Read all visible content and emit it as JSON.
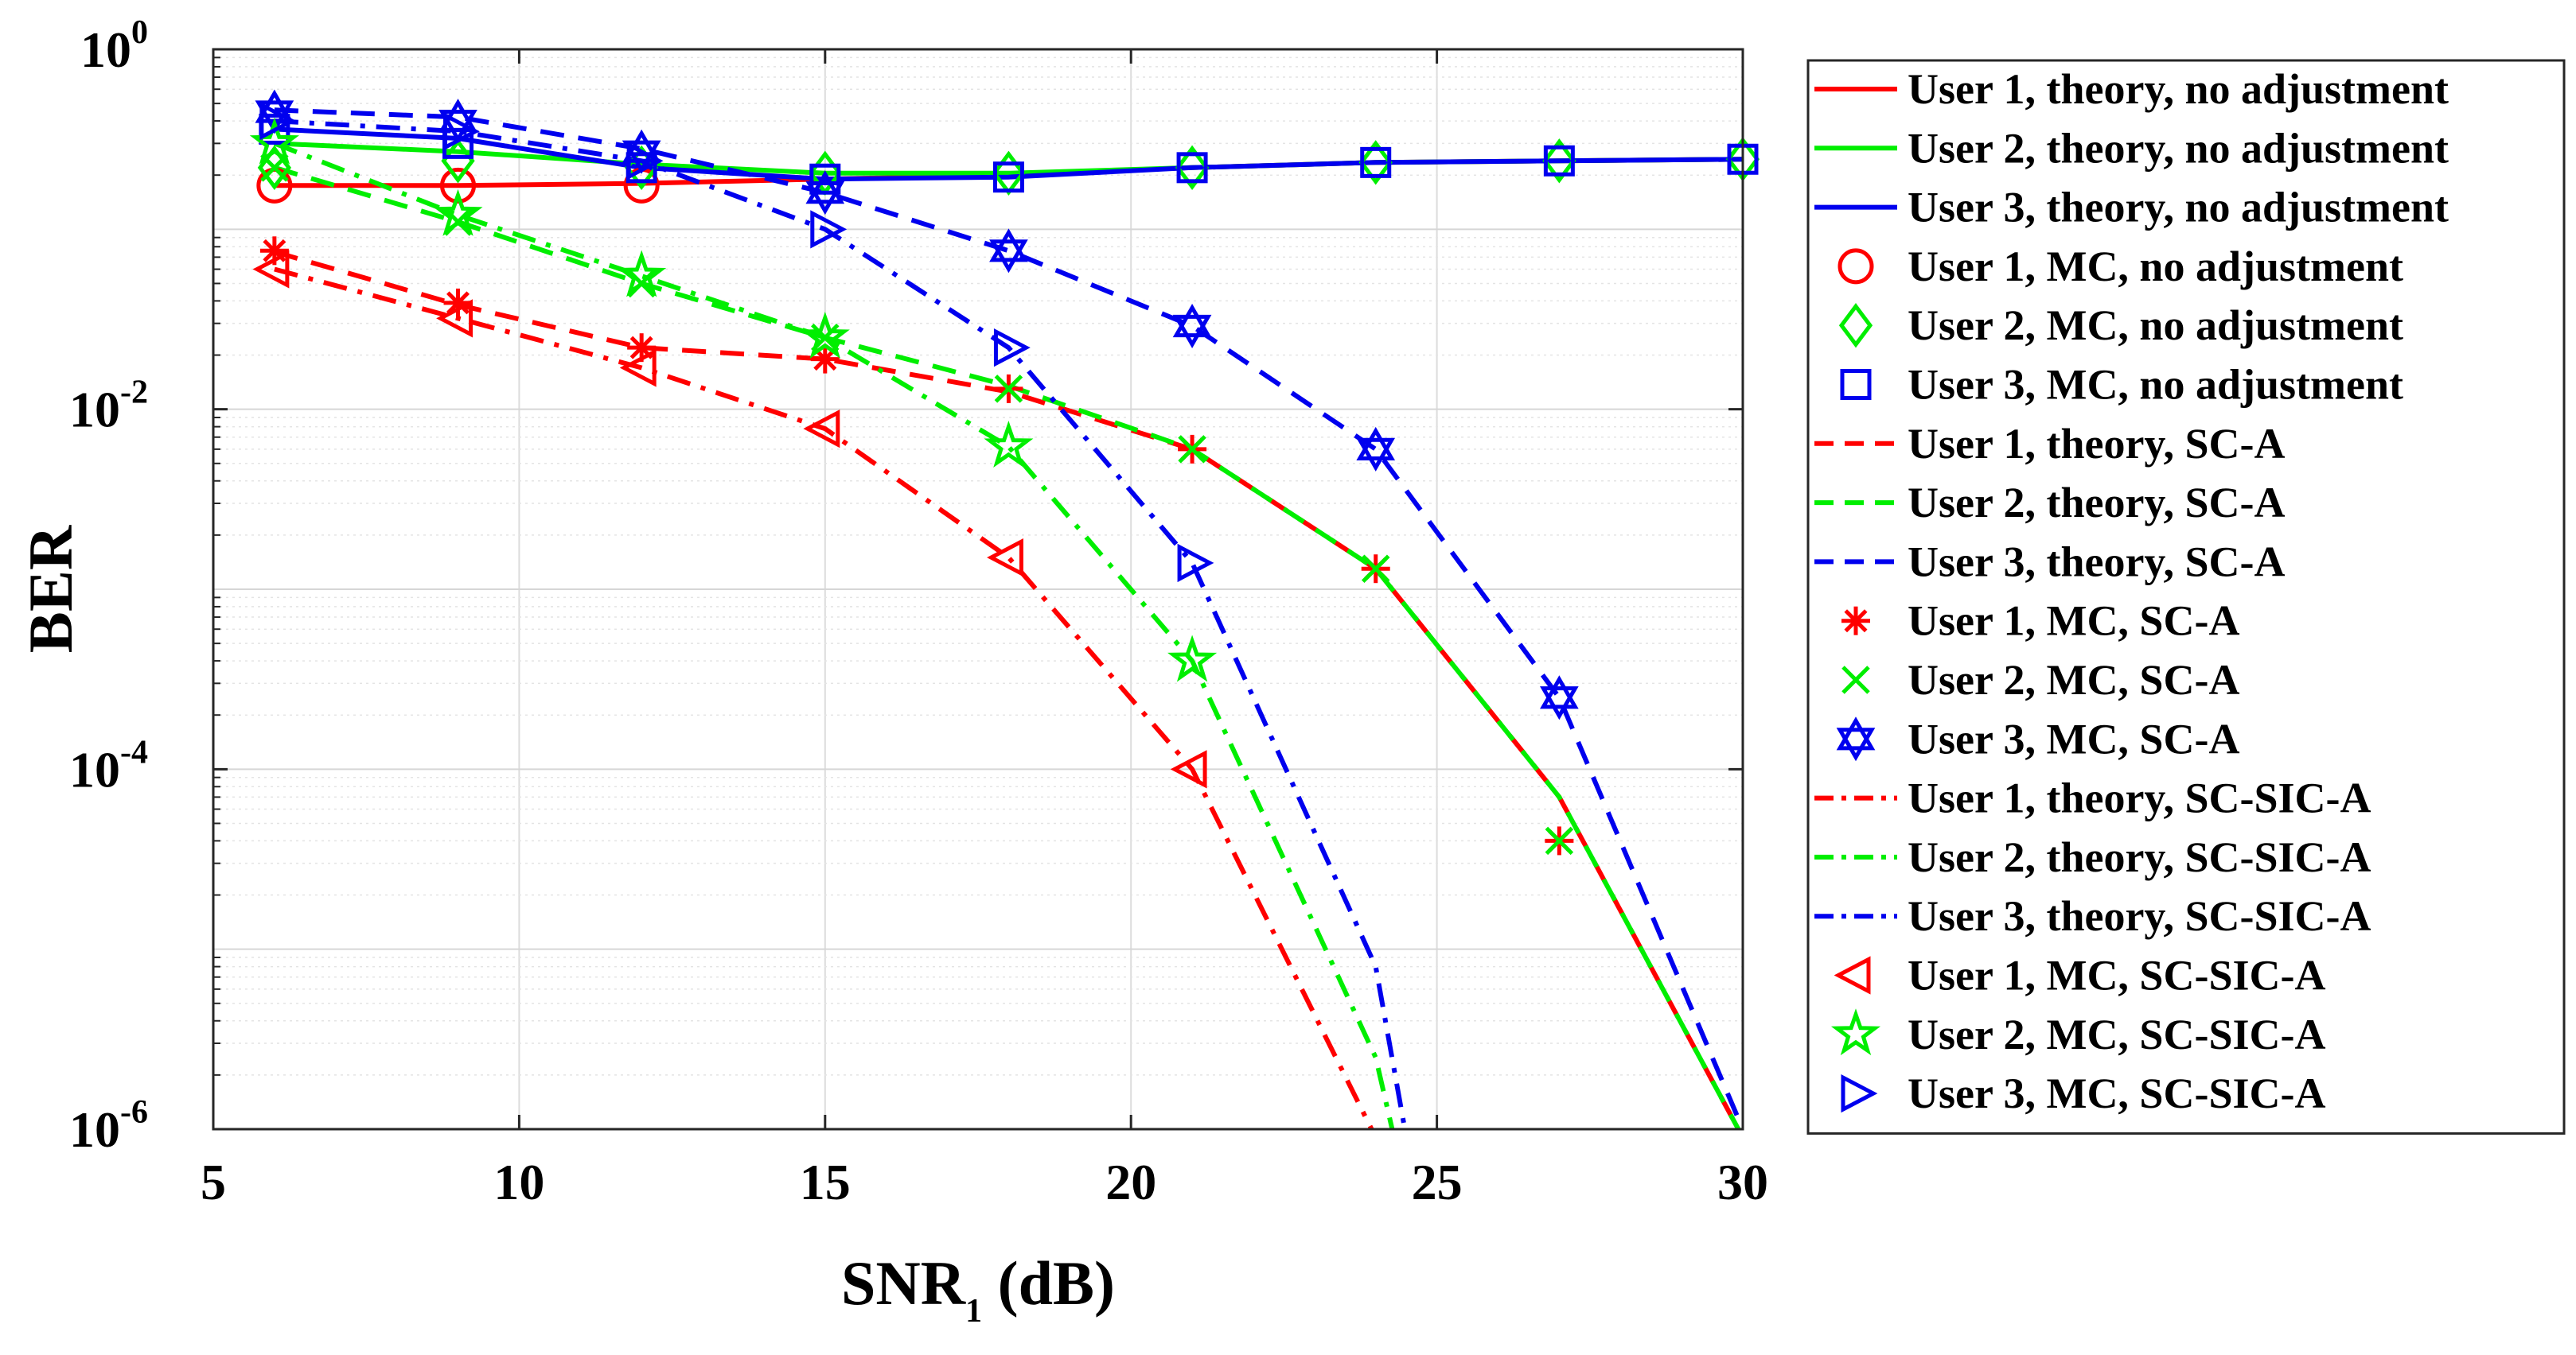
{
  "chart_data": {
    "type": "line",
    "title": "",
    "xlabel": "SNR",
    "xlabel_sub": "1",
    "xlabel_unit": " (dB)",
    "ylabel": "BER",
    "yscale": "log",
    "xlim": [
      5,
      30
    ],
    "ylim": [
      1e-06,
      1
    ],
    "grid": true,
    "legend_position": "outside-right",
    "x_ticks": [
      {
        "value": 5,
        "label": "5"
      },
      {
        "value": 10,
        "label": "10"
      },
      {
        "value": 15,
        "label": "15"
      },
      {
        "value": 20,
        "label": "20"
      },
      {
        "value": 25,
        "label": "25"
      },
      {
        "value": 30,
        "label": "30"
      }
    ],
    "y_ticks": [
      {
        "value": 1,
        "base": "10",
        "exp": "0"
      },
      {
        "value": 0.01,
        "base": "10",
        "exp": "-2"
      },
      {
        "value": 0.0001,
        "base": "10",
        "exp": "-4"
      },
      {
        "value": 1e-06,
        "base": "10",
        "exp": "-6"
      }
    ],
    "series": [
      {
        "name": "User 1, theory, no adjustment",
        "color": "#ff0000",
        "line": "solid",
        "marker": "none",
        "x": [
          6,
          9,
          12,
          15,
          18,
          21,
          24,
          27,
          30
        ],
        "y": [
          0.175,
          0.175,
          0.18,
          0.19,
          0.2,
          0.22,
          0.235,
          0.24,
          0.245
        ]
      },
      {
        "name": "User 2, theory, no adjustment",
        "color": "#00ee00",
        "line": "solid",
        "marker": "none",
        "x": [
          6,
          9,
          12,
          15,
          18,
          21,
          24,
          27,
          30
        ],
        "y": [
          0.3,
          0.27,
          0.23,
          0.205,
          0.205,
          0.22,
          0.235,
          0.24,
          0.245
        ]
      },
      {
        "name": "User 3, theory, no adjustment",
        "color": "#0000ee",
        "line": "solid",
        "marker": "none",
        "x": [
          6,
          9,
          12,
          15,
          18,
          21,
          24,
          27,
          30
        ],
        "y": [
          0.36,
          0.32,
          0.22,
          0.19,
          0.195,
          0.22,
          0.235,
          0.24,
          0.245
        ]
      },
      {
        "name": "User 1, MC, no adjustment",
        "color": "#ff0000",
        "line": "none",
        "marker": "circle",
        "x": [
          6,
          9,
          12
        ],
        "y": [
          0.175,
          0.175,
          0.175
        ]
      },
      {
        "name": "User 2, MC, no adjustment",
        "color": "#00ee00",
        "line": "none",
        "marker": "diamond",
        "x": [
          6,
          9,
          12,
          15,
          18,
          21,
          24,
          27,
          30
        ],
        "y": [
          0.22,
          0.24,
          0.22,
          0.205,
          0.205,
          0.22,
          0.235,
          0.24,
          0.245
        ]
      },
      {
        "name": "User 3, MC, no adjustment",
        "color": "#0000ee",
        "line": "none",
        "marker": "square",
        "x": [
          6,
          9,
          12,
          15,
          18,
          21,
          24,
          27,
          30
        ],
        "y": [
          0.36,
          0.3,
          0.22,
          0.19,
          0.195,
          0.22,
          0.235,
          0.24,
          0.245
        ]
      },
      {
        "name": "User 1, theory, SC-A",
        "color": "#ff0000",
        "line": "dashed",
        "marker": "none",
        "x": [
          6,
          9,
          12,
          15,
          18,
          21,
          24,
          27,
          30
        ],
        "y": [
          0.075,
          0.038,
          0.022,
          0.019,
          0.0125,
          0.006,
          0.0013,
          7e-05,
          9e-07
        ]
      },
      {
        "name": "User 2, theory, SC-A",
        "color": "#00ee00",
        "line": "dashed",
        "marker": "none",
        "x": [
          6,
          9,
          12,
          15,
          18,
          21,
          24,
          27,
          30
        ],
        "y": [
          0.22,
          0.11,
          0.05,
          0.025,
          0.0135,
          0.006,
          0.0013,
          7e-05,
          9e-07
        ]
      },
      {
        "name": "User 3, theory, SC-A",
        "color": "#0000ee",
        "line": "dashed",
        "marker": "none",
        "x": [
          6,
          9,
          12,
          15,
          18,
          21,
          24,
          27,
          30
        ],
        "y": [
          0.46,
          0.42,
          0.28,
          0.16,
          0.076,
          0.029,
          0.006,
          0.00025,
          1e-06
        ]
      },
      {
        "name": "User 1, MC, SC-A",
        "color": "#ff0000",
        "line": "none",
        "marker": "asterisk",
        "x": [
          6,
          9,
          12,
          15,
          18,
          21,
          24,
          27
        ],
        "y": [
          0.076,
          0.039,
          0.022,
          0.019,
          0.013,
          0.006,
          0.0013,
          4e-05
        ]
      },
      {
        "name": "User 2, MC, SC-A",
        "color": "#00ee00",
        "line": "none",
        "marker": "x",
        "x": [
          6,
          9,
          12,
          15,
          18,
          21,
          24,
          27
        ],
        "y": [
          0.22,
          0.11,
          0.05,
          0.025,
          0.013,
          0.006,
          0.0013,
          4e-05
        ]
      },
      {
        "name": "User 3, MC, SC-A",
        "color": "#0000ee",
        "line": "none",
        "marker": "hexagram",
        "x": [
          6,
          9,
          12,
          15,
          18,
          21,
          24,
          27
        ],
        "y": [
          0.45,
          0.4,
          0.27,
          0.16,
          0.076,
          0.029,
          0.006,
          0.00025
        ]
      },
      {
        "name": "User 1, theory, SC-SIC-A",
        "color": "#ff0000",
        "line": "dashdot",
        "marker": "none",
        "x": [
          6,
          9,
          12,
          15,
          18,
          21,
          24
        ],
        "y": [
          0.06,
          0.032,
          0.017,
          0.0078,
          0.0015,
          0.0001,
          9e-07
        ]
      },
      {
        "name": "User 2, theory, SC-SIC-A",
        "color": "#00ee00",
        "line": "dashdot",
        "marker": "none",
        "x": [
          6,
          9,
          12,
          15,
          18,
          21,
          24,
          24.3
        ],
        "y": [
          0.3,
          0.12,
          0.055,
          0.025,
          0.0062,
          0.0004,
          2.5e-06,
          9e-07
        ]
      },
      {
        "name": "User 3, theory, SC-SIC-A",
        "color": "#0000ee",
        "line": "dashdot",
        "marker": "none",
        "x": [
          6,
          9,
          12,
          15,
          18,
          21,
          24,
          24.5
        ],
        "y": [
          0.4,
          0.35,
          0.24,
          0.1,
          0.022,
          0.0014,
          8e-06,
          9e-07
        ]
      },
      {
        "name": "User 1, MC, SC-SIC-A",
        "color": "#ff0000",
        "line": "none",
        "marker": "triangle-left",
        "x": [
          6,
          9,
          12,
          15,
          18,
          21
        ],
        "y": [
          0.06,
          0.032,
          0.017,
          0.0078,
          0.0015,
          0.0001
        ]
      },
      {
        "name": "User 2, MC, SC-SIC-A",
        "color": "#00ee00",
        "line": "none",
        "marker": "pentagram",
        "x": [
          6,
          9,
          12,
          15,
          18,
          21
        ],
        "y": [
          0.3,
          0.12,
          0.055,
          0.025,
          0.0062,
          0.0004
        ]
      },
      {
        "name": "User 3, MC, SC-SIC-A",
        "color": "#0000ee",
        "line": "none",
        "marker": "triangle-right",
        "x": [
          6,
          9,
          12,
          15,
          18,
          21
        ],
        "y": [
          0.4,
          0.35,
          0.24,
          0.1,
          0.022,
          0.0014
        ]
      }
    ]
  }
}
